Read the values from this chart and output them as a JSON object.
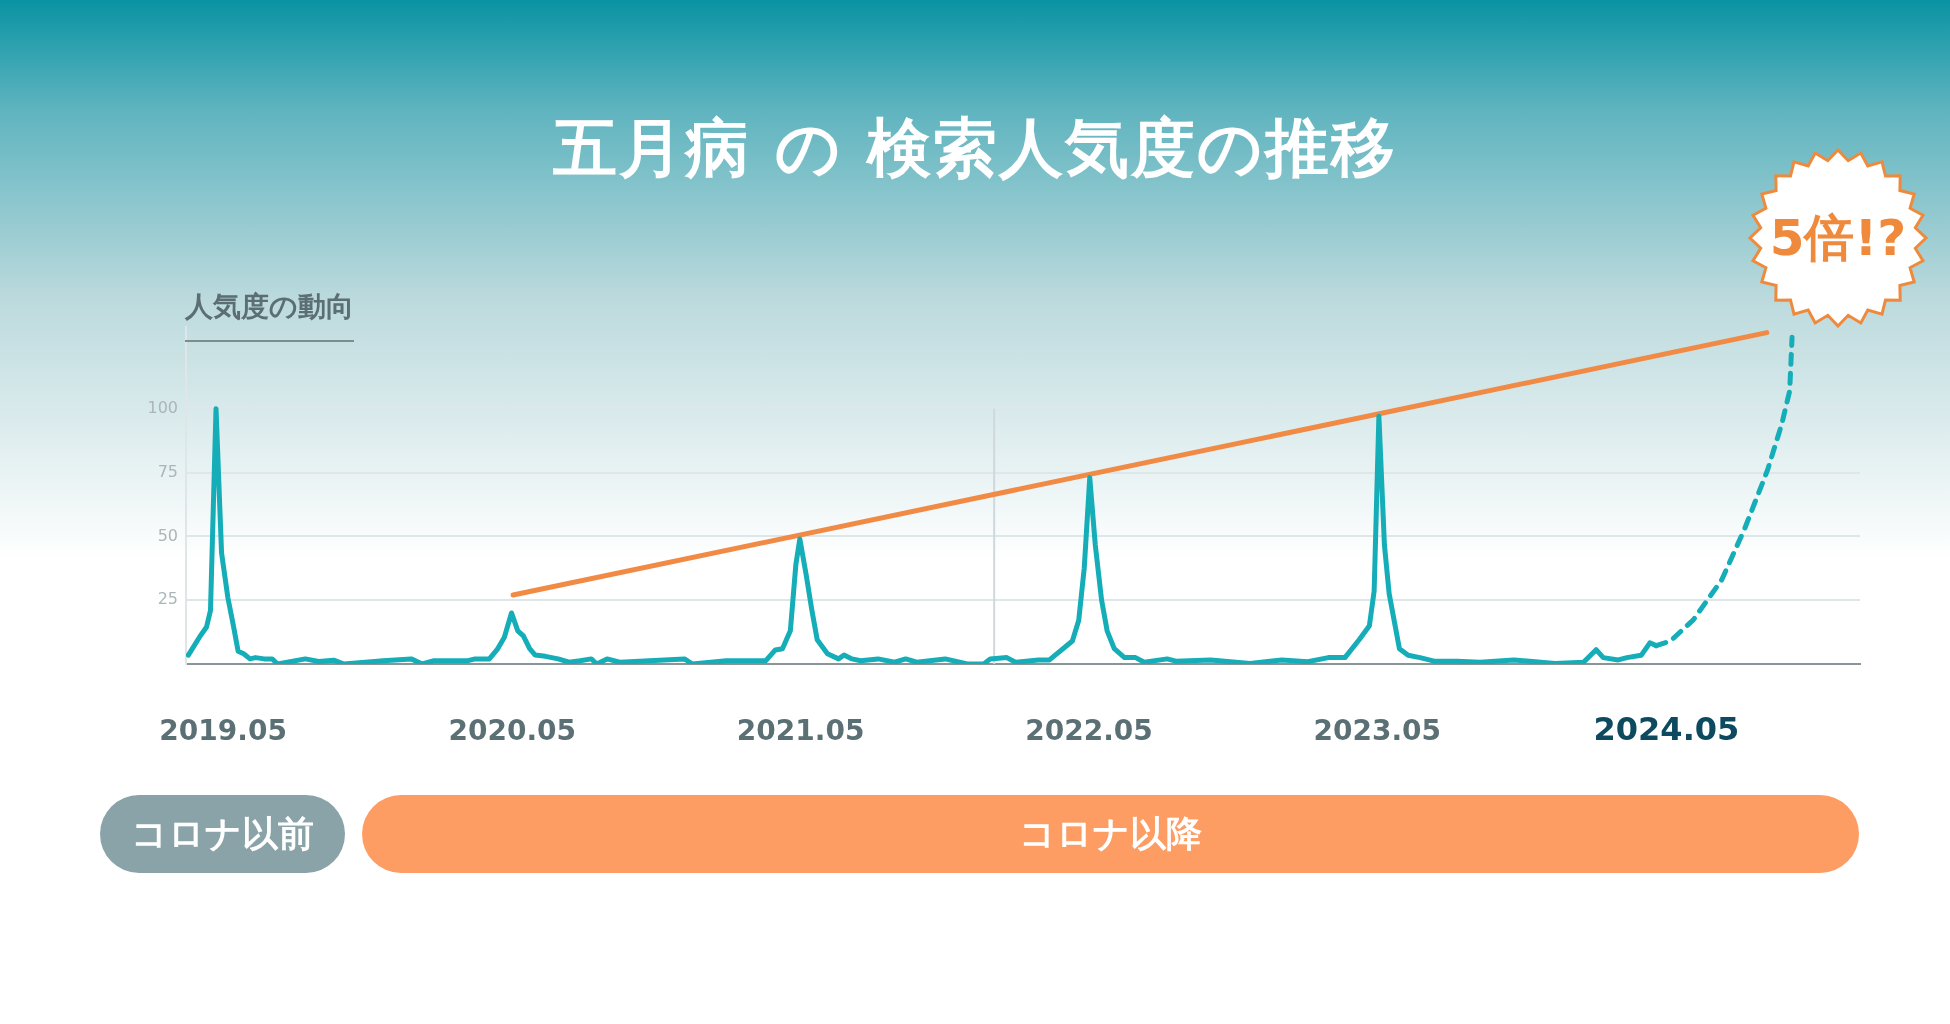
{
  "chart_data": {
    "type": "line",
    "title": "五月病 の 検索人気度の推移",
    "ylabel": "人気度の動向",
    "annotations": [
      "5倍!?",
      "コロナ以前",
      "コロナ以降"
    ],
    "xlim": [
      "2019-03-15",
      "2025-01-01"
    ],
    "xticks": [
      {
        "value": "2019-05",
        "label": "2019.05"
      },
      {
        "value": "2020-05",
        "label": "2020.05"
      },
      {
        "value": "2021-05",
        "label": "2021.05"
      },
      {
        "value": "2022-05",
        "label": "2022.05"
      },
      {
        "value": "2023-05",
        "label": "2023.05"
      },
      {
        "value": "2024-05",
        "label": "2024.05"
      }
    ],
    "ylim": [
      0,
      132
    ],
    "yticks": [
      {
        "value": 0,
        "label": null
      },
      25,
      50,
      75,
      100
    ],
    "grid": "y",
    "legend": false,
    "marker": "none",
    "ref_lines": [
      {
        "axis": "x",
        "value": "2022-01-01",
        "label": null,
        "color": "#cfd8dc"
      }
    ],
    "series": [
      {
        "color": "#14adb8",
        "line_style": "solid",
        "x": [
          "2019-03-18",
          "2019-04-01",
          "2019-04-10",
          "2019-04-15",
          "2019-04-22",
          "2019-04-29",
          "2019-05-07",
          "2019-05-14",
          "2019-05-20",
          "2019-05-27",
          "2019-06-04",
          "2019-06-11",
          "2019-06-22",
          "2019-07-02",
          "2019-07-09",
          "2019-08-13",
          "2019-08-30",
          "2019-09-18",
          "2019-10-01",
          "2019-11-20",
          "2019-12-25",
          "2020-01-08",
          "2020-01-23",
          "2020-03-06",
          "2020-03-15",
          "2020-04-02",
          "2020-04-12",
          "2020-04-21",
          "2020-04-30",
          "2020-05-08",
          "2020-05-15",
          "2020-05-23",
          "2020-05-30",
          "2020-06-12",
          "2020-06-28",
          "2020-07-12",
          "2020-07-26",
          "2020-08-09",
          "2020-08-16",
          "2020-08-29",
          "2020-09-14",
          "2020-12-05",
          "2020-12-15",
          "2021-01-27",
          "2021-02-24",
          "2021-03-18",
          "2021-03-30",
          "2021-04-08",
          "2021-04-18",
          "2021-04-25",
          "2021-04-30",
          "2021-05-08",
          "2021-05-15",
          "2021-05-22",
          "2021-06-04",
          "2021-06-18",
          "2021-06-25",
          "2021-07-05",
          "2021-07-16",
          "2021-08-07",
          "2021-08-28",
          "2021-09-11",
          "2021-09-25",
          "2021-10-31",
          "2021-11-28",
          "2021-12-19",
          "2021-12-27",
          "2022-01-17",
          "2022-01-28",
          "2022-02-26",
          "2022-03-12",
          "2022-04-10",
          "2022-04-18",
          "2022-04-25",
          "2022-05-02",
          "2022-05-09",
          "2022-05-17",
          "2022-05-24",
          "2022-06-02",
          "2022-06-15",
          "2022-06-29",
          "2022-07-10",
          "2022-08-08",
          "2022-08-19",
          "2022-10-02",
          "2022-11-21",
          "2022-12-31",
          "2023-02-02",
          "2023-02-28",
          "2023-03-21",
          "2023-04-08",
          "2023-04-21",
          "2023-04-27",
          "2023-05-03",
          "2023-05-10",
          "2023-05-16",
          "2023-05-29",
          "2023-06-09",
          "2023-06-24",
          "2023-07-12",
          "2023-08-10",
          "2023-09-08",
          "2023-10-21",
          "2023-12-12",
          "2024-01-17",
          "2024-02-02",
          "2024-02-11",
          "2024-03-01",
          "2024-03-12",
          "2024-03-30",
          "2024-04-10",
          "2024-04-18"
        ],
        "values": [
          3.5,
          10.5,
          14.5,
          21,
          100,
          43.5,
          26,
          15,
          5,
          4,
          2,
          2.5,
          2,
          2,
          0,
          2,
          1,
          1.5,
          0,
          1.3,
          2,
          0,
          1.3,
          1.3,
          2,
          2,
          5.7,
          10.5,
          20,
          13,
          11,
          6,
          3.5,
          3,
          2,
          0.7,
          1.3,
          2,
          0,
          2,
          0.7,
          2,
          0,
          1.3,
          1.3,
          1.3,
          5.5,
          6,
          13,
          39,
          49,
          35,
          21.5,
          9.5,
          4,
          2,
          3.5,
          2,
          1.3,
          2,
          0.7,
          2,
          0.7,
          2,
          0,
          0,
          2,
          2.5,
          0.7,
          1.6,
          1.6,
          9,
          17,
          37.5,
          73,
          46.6,
          25,
          13,
          6,
          2.5,
          2.5,
          0.7,
          2,
          1.1,
          1.6,
          0.2,
          1.6,
          0.9,
          2.5,
          2.5,
          9.5,
          15,
          28.6,
          97,
          46.6,
          27.5,
          6,
          3.4,
          2.5,
          1.1,
          1.1,
          0.7,
          1.6,
          0.2,
          0.7,
          5.6,
          2.5,
          1.6,
          2.5,
          3.4,
          8.3,
          7.2
        ]
      },
      {
        "color": "#f08a45",
        "line_style": "solid",
        "x": [
          "2020-05-02",
          "2024-09-05"
        ],
        "values": [
          27,
          129.8
        ]
      },
      {
        "color": "#14adb8",
        "line_style": "dashed",
        "x": [
          "2024-04-18",
          "2024-05-06",
          "2024-06-04",
          "2024-07-10",
          "2024-08-08",
          "2024-09-06",
          "2024-09-24",
          "2024-10-04",
          "2024-10-07"
        ],
        "values": [
          7.2,
          9,
          17.3,
          33,
          53,
          76,
          94,
          107,
          128
        ]
      }
    ]
  }
}
